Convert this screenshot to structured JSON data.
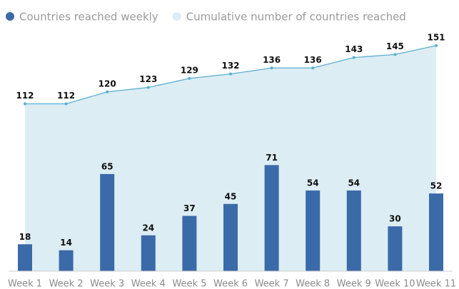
{
  "chart_data": {
    "type": "combo",
    "categories": [
      "Week 1",
      "Week 2",
      "Week 3",
      "Week 4",
      "Week 5",
      "Week 6",
      "Week 7",
      "Week 8",
      "Week 9",
      "Week 10",
      "Week 11"
    ],
    "series": [
      {
        "name": "Countries reached weekly",
        "type": "bar",
        "color": "#3b6aa8",
        "values": [
          18,
          14,
          65,
          24,
          37,
          45,
          71,
          54,
          54,
          30,
          52
        ]
      },
      {
        "name": "Cumulative number of countries reached",
        "type": "area",
        "color": "#5aaed0",
        "fill": "#dcedf4",
        "values": [
          112,
          112,
          120,
          123,
          129,
          132,
          136,
          136,
          143,
          145,
          151
        ]
      }
    ],
    "ylim": [
      0,
      160
    ]
  }
}
